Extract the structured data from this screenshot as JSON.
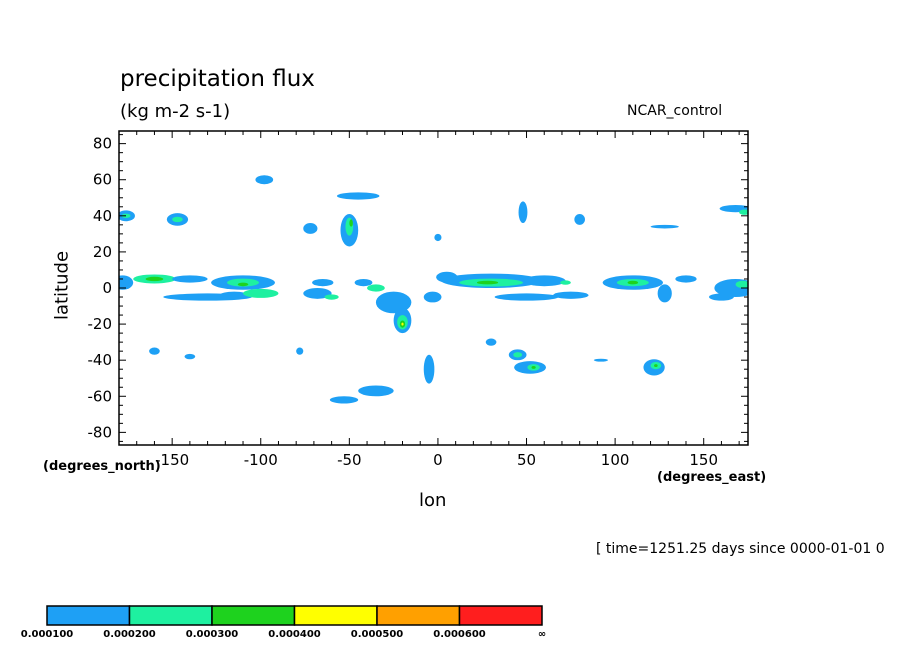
{
  "chart_data": {
    "type": "heatmap",
    "title": "precipitation flux",
    "units": "(kg m-2 s-1)",
    "run_label": "NCAR_control",
    "xlabel": "lon",
    "ylabel": "latitude",
    "x_units": "(degrees_east)",
    "y_units": "(degrees_north)",
    "timestamp": "[ time=1251.25 days since 0000-01-01 0",
    "xlim": [
      -180,
      175
    ],
    "ylim": [
      -87,
      87
    ],
    "x_ticks": [
      -150,
      -100,
      -50,
      0,
      50,
      100,
      150
    ],
    "y_ticks": [
      80,
      60,
      40,
      20,
      0,
      -20,
      -40,
      -60,
      -80
    ],
    "x_tick_labels": [
      "-150",
      "-100",
      "-50",
      "0",
      "50",
      "100",
      "150"
    ],
    "y_tick_labels": [
      "80",
      "60",
      "40",
      "20",
      "0",
      "-20",
      "-40",
      "-60",
      "-80"
    ],
    "levels": [
      0.0001,
      0.0002,
      0.0003,
      0.0004,
      0.0005,
      0.0006
    ],
    "level_labels": [
      "0.000100",
      "0.000200",
      "0.000300",
      "0.000400",
      "0.000500",
      "0.000600",
      "∞"
    ],
    "level_colors": [
      "#1ea0f5",
      "#1ef0a0",
      "#1ed21e",
      "#ffff00",
      "#ffa000",
      "#ff1e1e"
    ],
    "blobs": [
      {
        "lon": -178,
        "lat": 3,
        "rx": 6,
        "ry": 4,
        "level": 1
      },
      {
        "lon": -160,
        "lat": 5,
        "rx": 12,
        "ry": 2.5,
        "level": 2
      },
      {
        "lon": -160,
        "lat": 5,
        "rx": 5,
        "ry": 1.2,
        "level": 3
      },
      {
        "lon": -140,
        "lat": 5,
        "rx": 10,
        "ry": 2,
        "level": 1
      },
      {
        "lon": -110,
        "lat": 3,
        "rx": 18,
        "ry": 4,
        "level": 1
      },
      {
        "lon": -110,
        "lat": 3,
        "rx": 9,
        "ry": 2.2,
        "level": 2
      },
      {
        "lon": -110,
        "lat": 2,
        "rx": 3,
        "ry": 1,
        "level": 3
      },
      {
        "lon": -130,
        "lat": -5,
        "rx": 25,
        "ry": 2,
        "level": 1
      },
      {
        "lon": -115,
        "lat": -4,
        "rx": 8,
        "ry": 2,
        "level": 1
      },
      {
        "lon": -100,
        "lat": -3,
        "rx": 10,
        "ry": 2.5,
        "level": 2
      },
      {
        "lon": -176,
        "lat": 40,
        "rx": 5,
        "ry": 3,
        "level": 1
      },
      {
        "lon": -176,
        "lat": 40,
        "rx": 2.5,
        "ry": 1.2,
        "level": 2
      },
      {
        "lon": -147,
        "lat": 38,
        "rx": 6,
        "ry": 3.5,
        "level": 1
      },
      {
        "lon": -147,
        "lat": 38,
        "rx": 3,
        "ry": 1.5,
        "level": 2
      },
      {
        "lon": -98,
        "lat": 60,
        "rx": 5,
        "ry": 2.5,
        "level": 1
      },
      {
        "lon": -72,
        "lat": 33,
        "rx": 4,
        "ry": 3,
        "level": 1
      },
      {
        "lon": -50,
        "lat": 32,
        "rx": 5,
        "ry": 9,
        "level": 1
      },
      {
        "lon": -50,
        "lat": 34,
        "rx": 2.2,
        "ry": 5,
        "level": 2
      },
      {
        "lon": -49,
        "lat": 36,
        "rx": 1,
        "ry": 2,
        "level": 3
      },
      {
        "lon": -45,
        "lat": 51,
        "rx": 12,
        "ry": 2,
        "level": 1
      },
      {
        "lon": -68,
        "lat": -3,
        "rx": 8,
        "ry": 3,
        "level": 1
      },
      {
        "lon": -60,
        "lat": -5,
        "rx": 4,
        "ry": 1.5,
        "level": 2
      },
      {
        "lon": -65,
        "lat": 3,
        "rx": 6,
        "ry": 2,
        "level": 1
      },
      {
        "lon": -42,
        "lat": 3,
        "rx": 5,
        "ry": 2,
        "level": 1
      },
      {
        "lon": -35,
        "lat": 0,
        "rx": 5,
        "ry": 2,
        "level": 2
      },
      {
        "lon": -25,
        "lat": -8,
        "rx": 10,
        "ry": 6,
        "level": 1
      },
      {
        "lon": -20,
        "lat": -18,
        "rx": 5,
        "ry": 7,
        "level": 1
      },
      {
        "lon": -20,
        "lat": -19,
        "rx": 3,
        "ry": 4,
        "level": 2
      },
      {
        "lon": -20,
        "lat": -20,
        "rx": 1.5,
        "ry": 2,
        "level": 3
      },
      {
        "lon": -20,
        "lat": -20,
        "rx": 0.6,
        "ry": 0.8,
        "level": 4
      },
      {
        "lon": -3,
        "lat": -5,
        "rx": 5,
        "ry": 3,
        "level": 1
      },
      {
        "lon": 0,
        "lat": 28,
        "rx": 2,
        "ry": 2,
        "level": 1
      },
      {
        "lon": 5,
        "lat": 6,
        "rx": 6,
        "ry": 3,
        "level": 1
      },
      {
        "lon": 30,
        "lat": 4,
        "rx": 28,
        "ry": 4,
        "level": 1
      },
      {
        "lon": 30,
        "lat": 3,
        "rx": 18,
        "ry": 2.2,
        "level": 2
      },
      {
        "lon": 28,
        "lat": 3,
        "rx": 6,
        "ry": 1,
        "level": 3
      },
      {
        "lon": 60,
        "lat": 4,
        "rx": 12,
        "ry": 3,
        "level": 1
      },
      {
        "lon": 72,
        "lat": 3,
        "rx": 3,
        "ry": 1.2,
        "level": 2
      },
      {
        "lon": 50,
        "lat": -5,
        "rx": 18,
        "ry": 2,
        "level": 1
      },
      {
        "lon": 75,
        "lat": -4,
        "rx": 10,
        "ry": 2,
        "level": 1
      },
      {
        "lon": 110,
        "lat": 3,
        "rx": 17,
        "ry": 4,
        "level": 1
      },
      {
        "lon": 110,
        "lat": 3,
        "rx": 9,
        "ry": 2,
        "level": 2
      },
      {
        "lon": 110,
        "lat": 3,
        "rx": 3,
        "ry": 1,
        "level": 3
      },
      {
        "lon": 140,
        "lat": 5,
        "rx": 6,
        "ry": 2,
        "level": 1
      },
      {
        "lon": 128,
        "lat": -3,
        "rx": 4,
        "ry": 5,
        "level": 1
      },
      {
        "lon": 168,
        "lat": 0,
        "rx": 12,
        "ry": 5,
        "level": 1
      },
      {
        "lon": 172,
        "lat": 2,
        "rx": 4,
        "ry": 2,
        "level": 2
      },
      {
        "lon": 160,
        "lat": -5,
        "rx": 7,
        "ry": 2,
        "level": 1
      },
      {
        "lon": 48,
        "lat": 42,
        "rx": 2.5,
        "ry": 6,
        "level": 1
      },
      {
        "lon": 80,
        "lat": 38,
        "rx": 3,
        "ry": 3,
        "level": 1
      },
      {
        "lon": 128,
        "lat": 34,
        "rx": 8,
        "ry": 1,
        "level": 1
      },
      {
        "lon": 168,
        "lat": 44,
        "rx": 9,
        "ry": 2,
        "level": 1
      },
      {
        "lon": 173,
        "lat": 42,
        "rx": 3,
        "ry": 1.5,
        "level": 2
      },
      {
        "lon": -160,
        "lat": -35,
        "rx": 3,
        "ry": 2,
        "level": 1
      },
      {
        "lon": -140,
        "lat": -38,
        "rx": 3,
        "ry": 1.5,
        "level": 1
      },
      {
        "lon": -78,
        "lat": -35,
        "rx": 2,
        "ry": 2,
        "level": 1
      },
      {
        "lon": -5,
        "lat": -45,
        "rx": 3,
        "ry": 8,
        "level": 1
      },
      {
        "lon": -35,
        "lat": -57,
        "rx": 10,
        "ry": 3,
        "level": 1
      },
      {
        "lon": -53,
        "lat": -62,
        "rx": 8,
        "ry": 2,
        "level": 1
      },
      {
        "lon": 30,
        "lat": -30,
        "rx": 3,
        "ry": 2,
        "level": 1
      },
      {
        "lon": 45,
        "lat": -37,
        "rx": 5,
        "ry": 3,
        "level": 1
      },
      {
        "lon": 45,
        "lat": -37,
        "rx": 2.5,
        "ry": 1.5,
        "level": 2
      },
      {
        "lon": 52,
        "lat": -44,
        "rx": 9,
        "ry": 3.5,
        "level": 1
      },
      {
        "lon": 54,
        "lat": -44,
        "rx": 3.5,
        "ry": 1.8,
        "level": 2
      },
      {
        "lon": 54,
        "lat": -44,
        "rx": 1.2,
        "ry": 0.8,
        "level": 3
      },
      {
        "lon": 92,
        "lat": -40,
        "rx": 4,
        "ry": 0.8,
        "level": 1
      },
      {
        "lon": 122,
        "lat": -44,
        "rx": 6,
        "ry": 4.5,
        "level": 1
      },
      {
        "lon": 123,
        "lat": -43,
        "rx": 3,
        "ry": 2,
        "level": 2
      },
      {
        "lon": 123,
        "lat": -43,
        "rx": 1,
        "ry": 0.8,
        "level": 3
      }
    ]
  }
}
